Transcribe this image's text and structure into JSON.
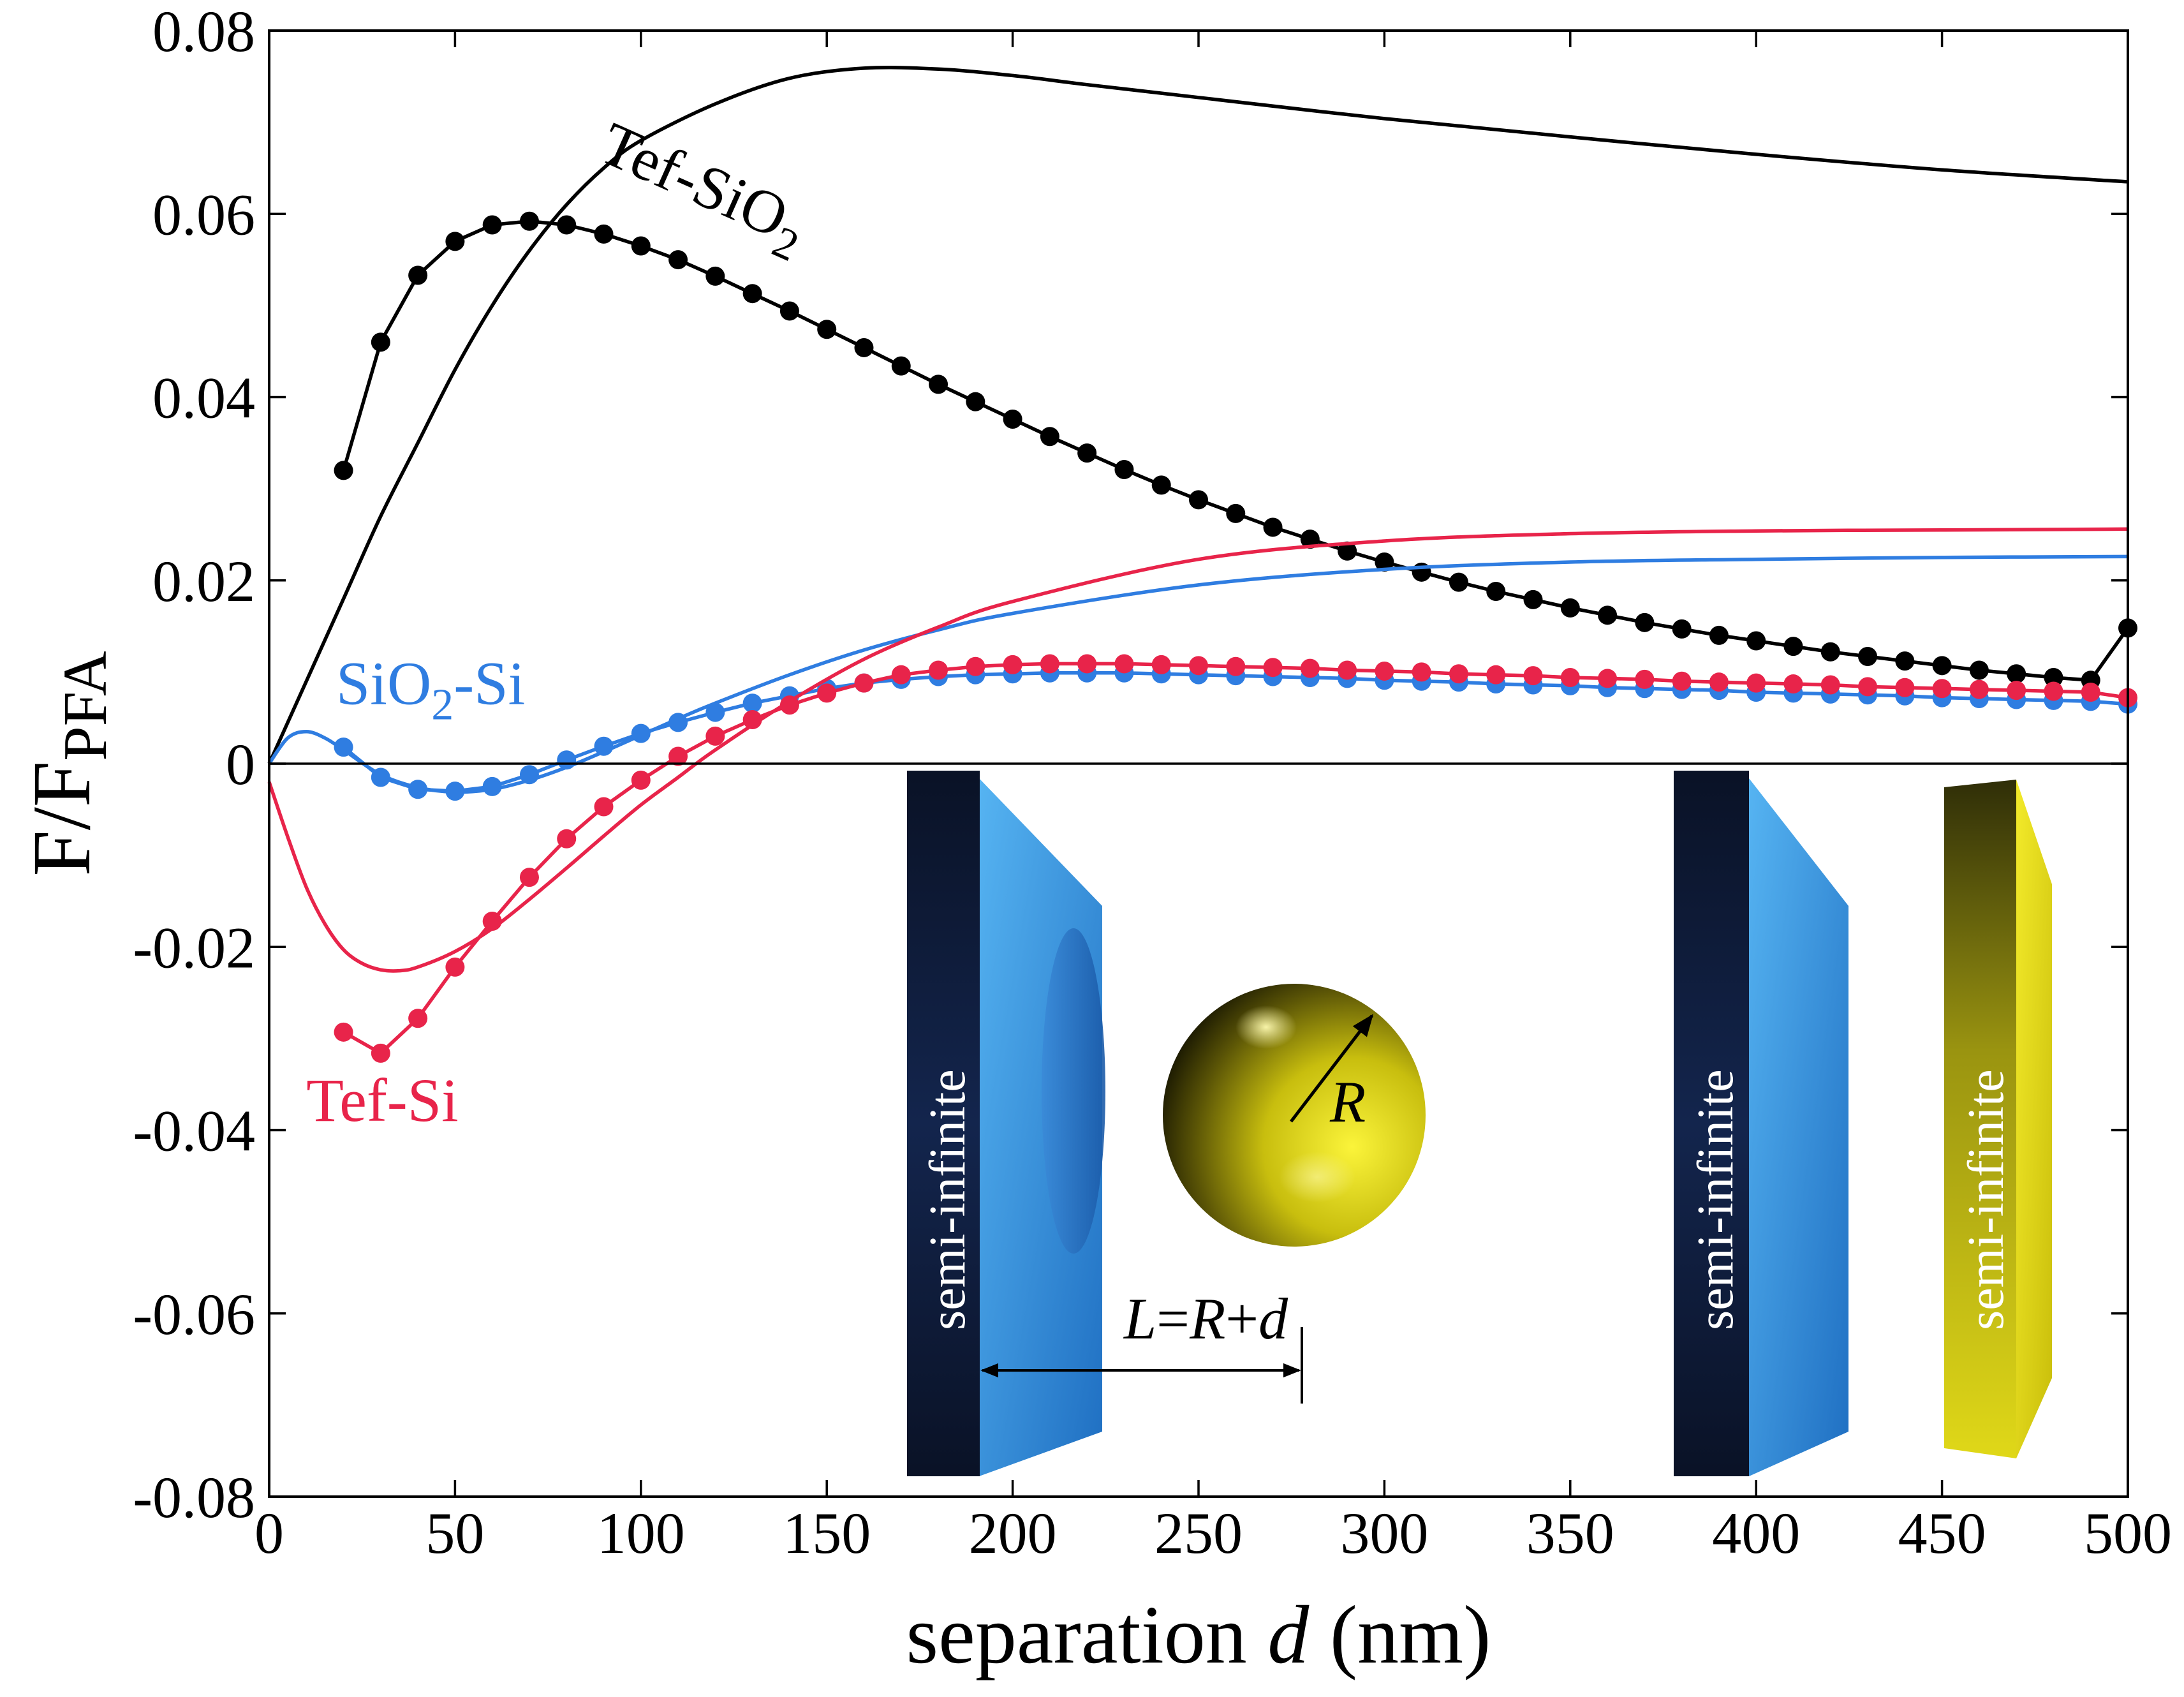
{
  "chart_data": {
    "type": "line",
    "title": "",
    "xlabel": {
      "prefix": "separation ",
      "var": "d",
      "suffix": " (nm)"
    },
    "ylabel": {
      "base": "F/F",
      "sub": "PFA"
    },
    "xlim": [
      0,
      500
    ],
    "ylim": [
      -0.08,
      0.08
    ],
    "xticks": [
      0,
      50,
      100,
      150,
      200,
      250,
      300,
      350,
      400,
      450,
      500
    ],
    "yticks": [
      -0.08,
      -0.06,
      -0.04,
      -0.02,
      0,
      0.02,
      0.04,
      0.06,
      0.08
    ],
    "xtick_labels": [
      "0",
      "50",
      "100",
      "150",
      "200",
      "250",
      "300",
      "350",
      "400",
      "450",
      "500"
    ],
    "ytick_labels": [
      "-0.08",
      "-0.06",
      "-0.04",
      "-0.02",
      "0",
      "0.02",
      "0.04",
      "0.06",
      "0.08"
    ],
    "zero_line": true,
    "series": [
      {
        "name": "Tef-SiO2 (solid)",
        "color": "#000000",
        "kind": "line",
        "x": [
          0,
          10,
          20,
          30,
          40,
          50,
          60,
          70,
          80,
          90,
          100,
          120,
          140,
          160,
          180,
          200,
          220,
          250,
          300,
          350,
          400,
          450,
          500
        ],
        "y": [
          0.0,
          0.009,
          0.018,
          0.027,
          0.035,
          0.043,
          0.05,
          0.056,
          0.061,
          0.065,
          0.068,
          0.072,
          0.0748,
          0.0759,
          0.0758,
          0.0751,
          0.0741,
          0.0727,
          0.0704,
          0.0684,
          0.0665,
          0.0648,
          0.0635
        ]
      },
      {
        "name": "Tef-SiO2 (dotted)",
        "color": "#000000",
        "kind": "line-markers",
        "x": [
          20,
          30,
          40,
          50,
          60,
          70,
          80,
          90,
          100,
          110,
          120,
          130,
          140,
          150,
          160,
          170,
          180,
          190,
          200,
          210,
          220,
          230,
          240,
          250,
          260,
          270,
          280,
          290,
          300,
          310,
          320,
          330,
          340,
          350,
          360,
          370,
          380,
          390,
          400,
          410,
          420,
          430,
          440,
          450,
          460,
          470,
          480,
          490,
          500
        ],
        "y": [
          0.032,
          0.046,
          0.0533,
          0.057,
          0.0588,
          0.0592,
          0.0588,
          0.0578,
          0.0565,
          0.055,
          0.0532,
          0.0513,
          0.0494,
          0.0474,
          0.0454,
          0.0434,
          0.0414,
          0.0395,
          0.0376,
          0.0357,
          0.0339,
          0.0321,
          0.0304,
          0.0288,
          0.0273,
          0.0258,
          0.0245,
          0.0232,
          0.022,
          0.0209,
          0.0198,
          0.0188,
          0.0179,
          0.017,
          0.0162,
          0.0154,
          0.0147,
          0.014,
          0.0134,
          0.0128,
          0.0122,
          0.0117,
          0.0112,
          0.0107,
          0.0102,
          0.0098,
          0.0094,
          0.0091,
          0.0148
        ]
      },
      {
        "name": "SiO2-Si (solid)",
        "color": "#2f7de1",
        "kind": "line",
        "x": [
          0,
          5,
          10,
          15,
          20,
          30,
          40,
          50,
          60,
          70,
          80,
          90,
          100,
          110,
          120,
          140,
          160,
          180,
          200,
          250,
          300,
          350,
          400,
          450,
          500
        ],
        "y": [
          0.0,
          0.0028,
          0.0035,
          0.0028,
          0.0015,
          -0.0012,
          -0.0026,
          -0.0031,
          -0.0028,
          -0.0018,
          -0.0004,
          0.0013,
          0.0031,
          0.0049,
          0.0066,
          0.0097,
          0.0124,
          0.0146,
          0.0164,
          0.0195,
          0.0212,
          0.022,
          0.0223,
          0.0225,
          0.0226
        ]
      },
      {
        "name": "SiO2-Si (dotted)",
        "color": "#2f7de1",
        "kind": "line-markers",
        "x": [
          20,
          30,
          40,
          50,
          60,
          70,
          80,
          90,
          100,
          110,
          120,
          130,
          140,
          150,
          160,
          170,
          180,
          190,
          200,
          210,
          220,
          230,
          240,
          250,
          260,
          270,
          280,
          290,
          300,
          310,
          320,
          330,
          340,
          350,
          360,
          370,
          380,
          390,
          400,
          410,
          420,
          430,
          440,
          450,
          460,
          470,
          480,
          490,
          500
        ],
        "y": [
          0.0018,
          -0.0015,
          -0.0028,
          -0.003,
          -0.0025,
          -0.0012,
          0.0004,
          0.0019,
          0.0033,
          0.0045,
          0.0056,
          0.0066,
          0.0074,
          0.0082,
          0.0088,
          0.0092,
          0.0095,
          0.0097,
          0.0098,
          0.0099,
          0.0099,
          0.0099,
          0.0098,
          0.0097,
          0.0096,
          0.0095,
          0.0094,
          0.0093,
          0.0091,
          0.009,
          0.0089,
          0.0087,
          0.0086,
          0.0085,
          0.0083,
          0.0082,
          0.0081,
          0.008,
          0.0078,
          0.0077,
          0.0076,
          0.0075,
          0.0074,
          0.0072,
          0.0071,
          0.007,
          0.0069,
          0.0068,
          0.0065
        ]
      },
      {
        "name": "Tef-Si (solid)",
        "color": "#e8244a",
        "kind": "line",
        "x": [
          0,
          5,
          10,
          15,
          20,
          25,
          30,
          35,
          40,
          50,
          60,
          70,
          80,
          90,
          100,
          110,
          120,
          140,
          160,
          180,
          200,
          250,
          300,
          350,
          400,
          450,
          500
        ],
        "y": [
          -0.002,
          -0.008,
          -0.0135,
          -0.0175,
          -0.0203,
          -0.0218,
          -0.0225,
          -0.0226,
          -0.0222,
          -0.0205,
          -0.018,
          -0.0148,
          -0.0114,
          -0.0079,
          -0.0045,
          -0.0015,
          0.0015,
          0.0068,
          0.0114,
          0.0149,
          0.0177,
          0.0223,
          0.0243,
          0.0251,
          0.0254,
          0.0255,
          0.0256
        ]
      },
      {
        "name": "Tef-Si (dotted)",
        "color": "#e8244a",
        "kind": "line-markers",
        "x": [
          20,
          30,
          40,
          50,
          60,
          70,
          80,
          90,
          100,
          110,
          120,
          130,
          140,
          150,
          160,
          170,
          180,
          190,
          200,
          210,
          220,
          230,
          240,
          250,
          260,
          270,
          280,
          290,
          300,
          310,
          320,
          330,
          340,
          350,
          360,
          370,
          380,
          390,
          400,
          410,
          420,
          430,
          440,
          450,
          460,
          470,
          480,
          490,
          500
        ],
        "y": [
          -0.0293,
          -0.0316,
          -0.0278,
          -0.0222,
          -0.0172,
          -0.0124,
          -0.0082,
          -0.0047,
          -0.0018,
          0.0008,
          0.003,
          0.0048,
          0.0064,
          0.0077,
          0.0088,
          0.0097,
          0.0102,
          0.0106,
          0.0108,
          0.0109,
          0.0109,
          0.0109,
          0.0108,
          0.0107,
          0.0106,
          0.0105,
          0.0104,
          0.0102,
          0.0101,
          0.01,
          0.0098,
          0.0097,
          0.0096,
          0.0094,
          0.0093,
          0.0092,
          0.009,
          0.0089,
          0.0088,
          0.0087,
          0.0086,
          0.0084,
          0.0083,
          0.0082,
          0.0081,
          0.008,
          0.0079,
          0.0078,
          0.0072
        ]
      }
    ],
    "annotations": [
      {
        "id": "tef_sio2",
        "base": "Tef-SiO",
        "sub": "2",
        "after": "",
        "color": "#000000",
        "x": 88,
        "y": 0.066,
        "rotate": 24
      },
      {
        "id": "sio2_si",
        "base": "SiO",
        "sub": "2",
        "after": "-Si",
        "color": "#2f7de1",
        "x": 18,
        "y": 0.0065,
        "rotate": 0
      },
      {
        "id": "tef_si",
        "base": "Tef-Si",
        "sub": "",
        "after": "",
        "color": "#e8244a",
        "x": 10,
        "y": -0.039,
        "rotate": 0
      }
    ],
    "inset": {
      "plate_label": "semi-infinite",
      "radius_label": "R",
      "distance_label": {
        "lhs": "L",
        "eq": "=",
        "r": "R",
        "plus": "+",
        "d": "d"
      },
      "colors": {
        "blue_plate": "#3a9ee8",
        "dark_face": "#0b1a3a",
        "gold": "#e6dd10"
      }
    }
  }
}
